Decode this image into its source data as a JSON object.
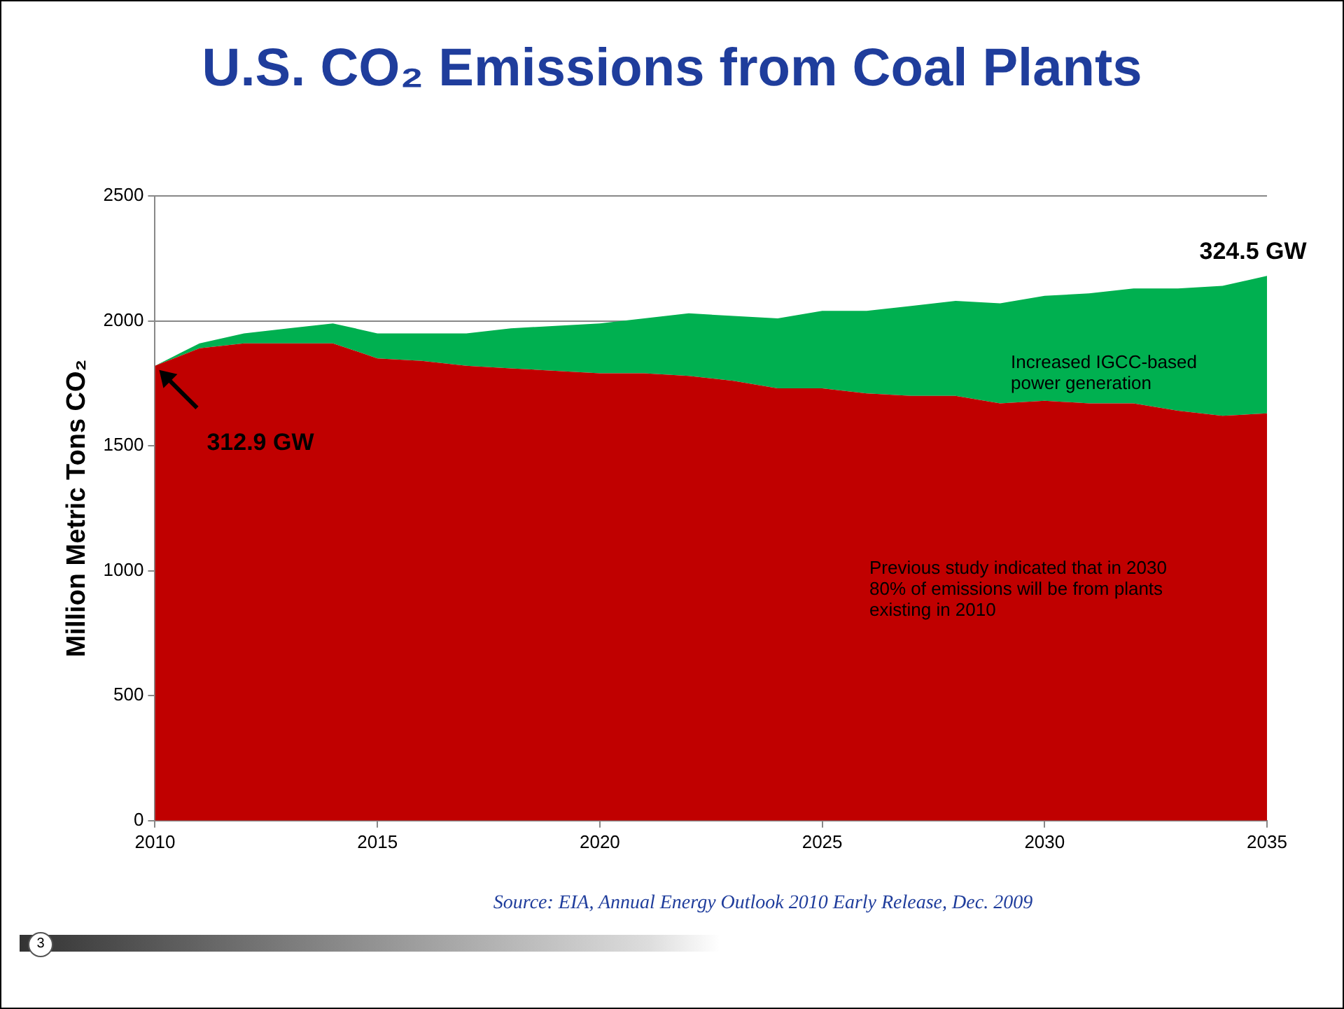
{
  "chart_data": {
    "type": "area",
    "stacked": true,
    "title": "U.S. CO₂ Emissions from Coal Plants",
    "ylabel": "Million Metric Tons CO₂",
    "x": [
      2010,
      2011,
      2012,
      2013,
      2014,
      2015,
      2016,
      2017,
      2018,
      2019,
      2020,
      2021,
      2022,
      2023,
      2024,
      2025,
      2026,
      2027,
      2028,
      2029,
      2030,
      2031,
      2032,
      2033,
      2034,
      2035
    ],
    "series": [
      {
        "color": "#c00000",
        "values": [
          1820,
          1890,
          1910,
          1910,
          1910,
          1850,
          1840,
          1820,
          1810,
          1800,
          1790,
          1790,
          1780,
          1760,
          1730,
          1730,
          1710,
          1700,
          1700,
          1670,
          1680,
          1670,
          1670,
          1640,
          1620,
          1630
        ]
      },
      {
        "color": "#00b050",
        "values": [
          0,
          20,
          40,
          60,
          80,
          100,
          110,
          130,
          160,
          180,
          200,
          220,
          250,
          260,
          280,
          310,
          330,
          360,
          380,
          400,
          420,
          440,
          460,
          490,
          520,
          550
        ]
      }
    ],
    "xlim": [
      2010,
      2035
    ],
    "xticks": [
      2010,
      2015,
      2020,
      2025,
      2030,
      2035
    ],
    "ylim": [
      0,
      2500
    ],
    "yticks": [
      0,
      500,
      1000,
      1500,
      2000,
      2500
    ],
    "grid": "y",
    "legend": false,
    "annotations": [
      {
        "text": "312.9 GW",
        "x": 2010,
        "y": 1820
      },
      {
        "text": "324.5 GW",
        "x": 2035,
        "y": 2180
      },
      "Increased IGCC-based\npower generation",
      "Previous study indicated that in 2030\n80% of emissions will be from plants\nexisting in 2010",
      "Source: EIA, Annual Energy Outlook 2010 Early Release, Dec. 2009",
      "3"
    ]
  }
}
